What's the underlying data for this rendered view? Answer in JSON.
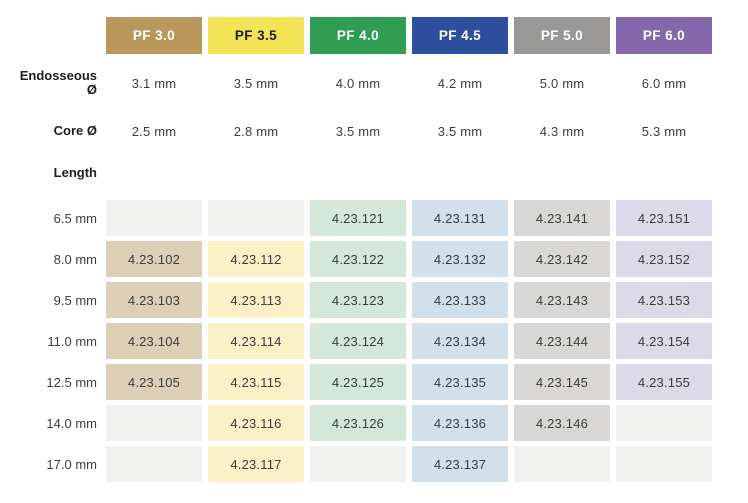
{
  "table": {
    "length_label": "Length",
    "text_color": "#3c3c3b",
    "label_color": "#1d1d1b",
    "empty_cell_bg": "#f1f1f0",
    "columns": [
      {
        "id": "pf30",
        "label": "PF 3.0",
        "header_bg": "#ba985c",
        "header_text": "#ffffff",
        "cell_bg": "#dccfb6"
      },
      {
        "id": "pf35",
        "label": "PF 3.5",
        "header_bg": "#f3e356",
        "header_text": "#1d1d1b",
        "cell_bg": "#faf1c7"
      },
      {
        "id": "pf40",
        "label": "PF 4.0",
        "header_bg": "#2f9e52",
        "header_text": "#ffffff",
        "cell_bg": "#d3e8da"
      },
      {
        "id": "pf45",
        "label": "PF 4.5",
        "header_bg": "#2e4e9e",
        "header_text": "#ffffff",
        "cell_bg": "#d2e0ec"
      },
      {
        "id": "pf50",
        "label": "PF 5.0",
        "header_bg": "#999897",
        "header_text": "#ffffff",
        "cell_bg": "#d8d7d5"
      },
      {
        "id": "pf60",
        "label": "PF 6.0",
        "header_bg": "#8568ac",
        "header_text": "#ffffff",
        "cell_bg": "#dcd9e8"
      }
    ],
    "spec_rows": [
      {
        "id": "endosseous-diameter",
        "label": "Endosseous Ø",
        "values": [
          "3.1 mm",
          "3.5 mm",
          "4.0 mm",
          "4.2 mm",
          "5.0 mm",
          "6.0 mm"
        ]
      },
      {
        "id": "core-diameter",
        "label": "Core Ø",
        "values": [
          "2.5 mm",
          "2.8 mm",
          "3.5 mm",
          "3.5 mm",
          "4.3 mm",
          "5.3 mm"
        ]
      }
    ],
    "length_rows": [
      {
        "label": "6.5 mm",
        "cells": [
          "",
          "",
          "4.23.121",
          "4.23.131",
          "4.23.141",
          "4.23.151"
        ]
      },
      {
        "label": "8.0 mm",
        "cells": [
          "4.23.102",
          "4.23.112",
          "4.23.122",
          "4.23.132",
          "4.23.142",
          "4.23.152"
        ]
      },
      {
        "label": "9.5 mm",
        "cells": [
          "4.23.103",
          "4.23.113",
          "4.23.123",
          "4.23.133",
          "4.23.143",
          "4.23.153"
        ]
      },
      {
        "label": "11.0 mm",
        "cells": [
          "4.23.104",
          "4.23.114",
          "4.23.124",
          "4.23.134",
          "4.23.144",
          "4.23.154"
        ]
      },
      {
        "label": "12.5 mm",
        "cells": [
          "4.23.105",
          "4.23.115",
          "4.23.125",
          "4.23.135",
          "4.23.145",
          "4.23.155"
        ]
      },
      {
        "label": "14.0 mm",
        "cells": [
          "",
          "4.23.116",
          "4.23.126",
          "4.23.136",
          "4.23.146",
          ""
        ]
      },
      {
        "label": "17.0 mm",
        "cells": [
          "",
          "4.23.117",
          "",
          "4.23.137",
          "",
          ""
        ]
      }
    ]
  }
}
